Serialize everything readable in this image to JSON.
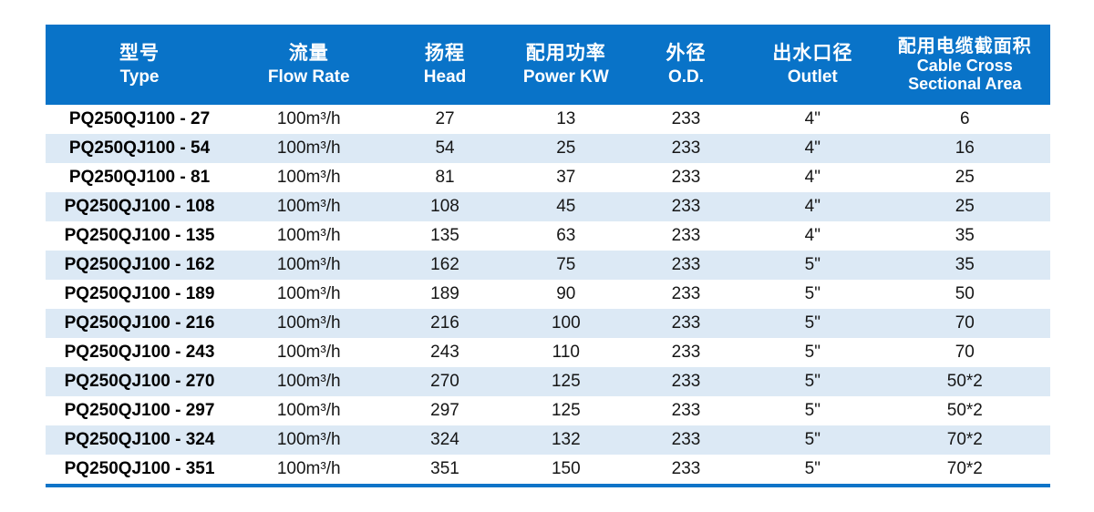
{
  "table": {
    "columns": [
      {
        "zh": "型号",
        "en": "Type"
      },
      {
        "zh": "流量",
        "en": "Flow Rate"
      },
      {
        "zh": "扬程",
        "en": "Head"
      },
      {
        "zh": "配用功率",
        "en": "Power KW"
      },
      {
        "zh": "外径",
        "en": "O.D."
      },
      {
        "zh": "出水口径",
        "en": "Outlet"
      },
      {
        "zh": "配用电缆截面积",
        "en": "Cable Cross",
        "en2": "Sectional Area"
      }
    ],
    "rows": [
      [
        "PQ250QJ100 - 27",
        "100m³/h",
        "27",
        "13",
        "233",
        "4\"",
        "6"
      ],
      [
        "PQ250QJ100 - 54",
        "100m³/h",
        "54",
        "25",
        "233",
        "4\"",
        "16"
      ],
      [
        "PQ250QJ100 - 81",
        "100m³/h",
        "81",
        "37",
        "233",
        "4\"",
        "25"
      ],
      [
        "PQ250QJ100 - 108",
        "100m³/h",
        "108",
        "45",
        "233",
        "4\"",
        "25"
      ],
      [
        "PQ250QJ100 - 135",
        "100m³/h",
        "135",
        "63",
        "233",
        "4\"",
        "35"
      ],
      [
        "PQ250QJ100 - 162",
        "100m³/h",
        "162",
        "75",
        "233",
        "5\"",
        "35"
      ],
      [
        "PQ250QJ100 - 189",
        "100m³/h",
        "189",
        "90",
        "233",
        "5\"",
        "50"
      ],
      [
        "PQ250QJ100 - 216",
        "100m³/h",
        "216",
        "100",
        "233",
        "5\"",
        "70"
      ],
      [
        "PQ250QJ100 - 243",
        "100m³/h",
        "243",
        "110",
        "233",
        "5\"",
        "70"
      ],
      [
        "PQ250QJ100 - 270",
        "100m³/h",
        "270",
        "125",
        "233",
        "5\"",
        "50*2"
      ],
      [
        "PQ250QJ100 - 297",
        "100m³/h",
        "297",
        "125",
        "233",
        "5\"",
        "50*2"
      ],
      [
        "PQ250QJ100 - 324",
        "100m³/h",
        "324",
        "132",
        "233",
        "5\"",
        "70*2"
      ],
      [
        "PQ250QJ100 - 351",
        "100m³/h",
        "351",
        "150",
        "233",
        "5\"",
        "70*2"
      ]
    ],
    "colors": {
      "header_bg": "#0973c8",
      "stripe_bg": "#dce9f5",
      "bottom_rule": "#0f74c8",
      "header_text": "#ffffff",
      "body_text": "#161616"
    }
  }
}
